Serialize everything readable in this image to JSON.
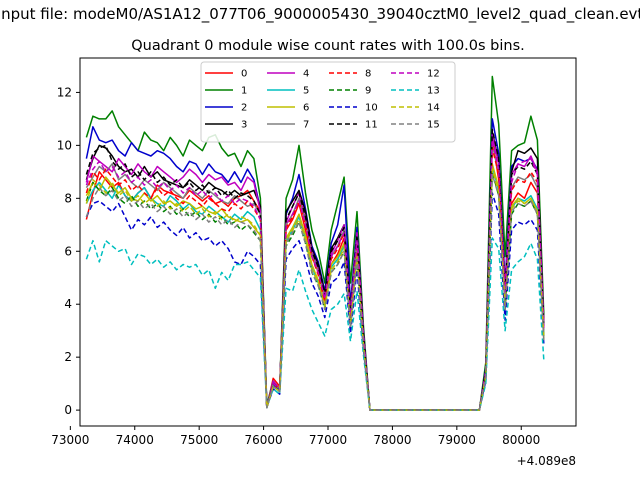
{
  "figure": {
    "suptitle": "Input file: modeM0/AS1A12_077T06_9000005430_39040cztM0_level2_quad_clean.evt"
  },
  "chart_data": {
    "type": "line",
    "title": "Quadrant 0 module wise count rates with 100.0s bins.",
    "xlabel": "",
    "ylabel": "",
    "x_offset_label": "+4.089e8",
    "xlim": [
      73150,
      80850
    ],
    "ylim": [
      -0.6,
      13.3
    ],
    "xticks": [
      73000,
      74000,
      75000,
      76000,
      77000,
      78000,
      79000,
      80000
    ],
    "yticks": [
      0,
      2,
      4,
      6,
      8,
      10,
      12
    ],
    "grid": false,
    "legend_position": "top-center",
    "legend_columns": 4,
    "series": [
      {
        "name": "0",
        "color": "#ff0000",
        "dash": "solid",
        "values": [
          7.2,
          8.2,
          9.0,
          8.7,
          8.4,
          8.6,
          8.1,
          7.9,
          8.2,
          8.4,
          8.0,
          8.5,
          8.3,
          8.2,
          8.1,
          8.0,
          8.3,
          8.1,
          7.9,
          8.1,
          7.8,
          7.9,
          7.7,
          8.0,
          8.1,
          8.3,
          7.9,
          7.5,
          0.1,
          1.2,
          0.9,
          6.8,
          7.2,
          7.8,
          6.8,
          5.8,
          5.2,
          4.3,
          5.5,
          5.9,
          6.5,
          3.5,
          6.5,
          2.8,
          0.0,
          0.0,
          0.0,
          0.0,
          0.0,
          0.0,
          0.0,
          0.0,
          0.0,
          0.0,
          0.0,
          0.0,
          0.0,
          0.0,
          0.0,
          0.0,
          0.0,
          0.0,
          1.5,
          10.3,
          8.7,
          4.5,
          7.8,
          8.2,
          8.0,
          8.6,
          8.2,
          3.4
        ]
      },
      {
        "name": "1",
        "color": "#008000",
        "dash": "solid",
        "values": [
          10.3,
          11.1,
          11.0,
          11.0,
          11.3,
          10.7,
          10.4,
          10.1,
          9.8,
          10.5,
          10.2,
          10.1,
          9.8,
          10.3,
          10.0,
          9.6,
          10.2,
          10.0,
          9.8,
          10.3,
          10.4,
          9.9,
          9.6,
          9.7,
          9.2,
          9.8,
          9.5,
          8.0,
          0.2,
          1.1,
          0.8,
          8.0,
          8.7,
          10.0,
          8.2,
          6.8,
          6.0,
          4.8,
          6.8,
          7.8,
          8.8,
          4.8,
          7.5,
          3.2,
          0.0,
          0.0,
          0.0,
          0.0,
          0.0,
          0.0,
          0.0,
          0.0,
          0.0,
          0.0,
          0.0,
          0.0,
          0.0,
          0.0,
          0.0,
          0.0,
          0.0,
          0.0,
          1.8,
          12.6,
          10.8,
          5.8,
          9.8,
          10.0,
          10.1,
          11.1,
          10.2,
          3.6
        ]
      },
      {
        "name": "2",
        "color": "#0000cc",
        "dash": "solid",
        "values": [
          9.5,
          10.7,
          10.2,
          10.1,
          10.2,
          9.8,
          9.6,
          10.1,
          9.8,
          9.7,
          9.6,
          9.8,
          9.7,
          9.5,
          9.2,
          9.0,
          9.4,
          9.3,
          8.9,
          9.3,
          9.0,
          8.9,
          8.6,
          9.0,
          8.6,
          9.1,
          8.7,
          7.6,
          0.1,
          1.0,
          0.7,
          7.4,
          8.0,
          8.9,
          7.6,
          6.2,
          5.6,
          4.5,
          6.3,
          7.0,
          8.5,
          4.0,
          6.9,
          3.0,
          0.0,
          0.0,
          0.0,
          0.0,
          0.0,
          0.0,
          0.0,
          0.0,
          0.0,
          0.0,
          0.0,
          0.0,
          0.0,
          0.0,
          0.0,
          0.0,
          0.0,
          0.0,
          1.6,
          11.0,
          9.7,
          4.8,
          9.2,
          9.5,
          9.4,
          9.5,
          9.1,
          3.2
        ]
      },
      {
        "name": "3",
        "color": "#000000",
        "dash": "solid",
        "values": [
          8.7,
          9.5,
          10.0,
          9.9,
          9.6,
          9.2,
          9.0,
          9.1,
          8.8,
          9.2,
          8.8,
          9.0,
          8.7,
          8.6,
          8.5,
          8.4,
          8.7,
          8.5,
          8.3,
          8.6,
          8.4,
          8.3,
          8.1,
          8.3,
          8.1,
          8.2,
          8.3,
          7.7,
          0.1,
          1.0,
          0.8,
          7.5,
          7.9,
          8.3,
          7.5,
          6.1,
          5.5,
          4.4,
          6.1,
          6.5,
          7.0,
          3.8,
          6.6,
          2.9,
          0.0,
          0.0,
          0.0,
          0.0,
          0.0,
          0.0,
          0.0,
          0.0,
          0.0,
          0.0,
          0.0,
          0.0,
          0.0,
          0.0,
          0.0,
          0.0,
          0.0,
          0.0,
          1.5,
          10.5,
          9.4,
          4.4,
          9.0,
          9.8,
          9.7,
          9.9,
          9.5,
          3.3
        ]
      },
      {
        "name": "4",
        "color": "#bf00bf",
        "dash": "solid",
        "values": [
          8.6,
          9.6,
          9.4,
          9.2,
          9.0,
          9.5,
          9.2,
          8.9,
          9.3,
          9.0,
          8.8,
          9.2,
          9.0,
          8.8,
          8.6,
          8.8,
          9.1,
          8.9,
          8.6,
          8.9,
          8.7,
          8.8,
          8.5,
          8.6,
          8.3,
          8.8,
          8.6,
          7.5,
          0.1,
          1.1,
          0.8,
          7.1,
          7.7,
          8.2,
          7.2,
          6.0,
          5.3,
          4.3,
          5.9,
          6.4,
          7.0,
          3.7,
          6.7,
          2.9,
          0.0,
          0.0,
          0.0,
          0.0,
          0.0,
          0.0,
          0.0,
          0.0,
          0.0,
          0.0,
          0.0,
          0.0,
          0.0,
          0.0,
          0.0,
          0.0,
          0.0,
          0.0,
          1.5,
          10.4,
          9.3,
          4.6,
          8.9,
          9.3,
          9.2,
          9.6,
          9.0,
          3.2
        ]
      },
      {
        "name": "5",
        "color": "#00bfbf",
        "dash": "solid",
        "values": [
          7.8,
          8.3,
          8.6,
          8.3,
          8.0,
          8.5,
          8.1,
          7.9,
          8.2,
          8.4,
          8.0,
          7.8,
          7.7,
          8.1,
          7.9,
          7.6,
          7.8,
          7.5,
          7.4,
          7.7,
          7.5,
          7.3,
          7.1,
          7.4,
          7.2,
          7.5,
          7.3,
          6.8,
          0.1,
          0.9,
          0.7,
          6.4,
          6.8,
          7.3,
          6.5,
          5.4,
          4.8,
          3.9,
          5.4,
          5.7,
          6.2,
          3.2,
          5.9,
          2.6,
          0.0,
          0.0,
          0.0,
          0.0,
          0.0,
          0.0,
          0.0,
          0.0,
          0.0,
          0.0,
          0.0,
          0.0,
          0.0,
          0.0,
          0.0,
          0.0,
          0.0,
          0.0,
          1.3,
          9.2,
          8.3,
          3.9,
          7.6,
          8.0,
          7.9,
          8.1,
          7.6,
          2.8
        ]
      },
      {
        "name": "6",
        "color": "#bfbf00",
        "dash": "solid",
        "values": [
          8.1,
          8.6,
          8.3,
          8.8,
          8.5,
          8.2,
          8.4,
          8.0,
          7.9,
          8.2,
          7.9,
          8.1,
          7.8,
          7.9,
          7.7,
          7.9,
          7.8,
          7.6,
          7.7,
          7.5,
          7.4,
          7.6,
          7.3,
          7.2,
          7.1,
          7.2,
          6.9,
          6.6,
          0.1,
          0.9,
          0.7,
          6.5,
          6.9,
          7.4,
          6.6,
          5.5,
          4.9,
          4.0,
          5.5,
          5.8,
          6.3,
          3.3,
          6.0,
          2.6,
          0.0,
          0.0,
          0.0,
          0.0,
          0.0,
          0.0,
          0.0,
          0.0,
          0.0,
          0.0,
          0.0,
          0.0,
          0.0,
          0.0,
          0.0,
          0.0,
          0.0,
          0.0,
          1.3,
          9.3,
          8.4,
          4.0,
          7.7,
          8.0,
          7.8,
          8.0,
          7.5,
          2.7
        ]
      },
      {
        "name": "7",
        "color": "#808080",
        "dash": "solid",
        "values": [
          8.4,
          8.8,
          9.2,
          9.0,
          9.3,
          8.7,
          8.9,
          8.6,
          8.4,
          8.7,
          8.5,
          8.3,
          8.6,
          8.4,
          8.2,
          8.0,
          8.4,
          8.2,
          8.0,
          8.3,
          8.1,
          7.9,
          7.8,
          8.1,
          7.9,
          7.7,
          7.8,
          7.4,
          0.1,
          1.0,
          0.8,
          7.0,
          7.4,
          8.0,
          7.1,
          5.9,
          5.2,
          4.2,
          5.8,
          6.2,
          6.8,
          3.6,
          6.4,
          2.8,
          0.0,
          0.0,
          0.0,
          0.0,
          0.0,
          0.0,
          0.0,
          0.0,
          0.0,
          0.0,
          0.0,
          0.0,
          0.0,
          0.0,
          0.0,
          0.0,
          0.0,
          0.0,
          1.4,
          10.0,
          9.0,
          4.3,
          8.4,
          8.8,
          8.7,
          8.9,
          8.4,
          3.0
        ]
      },
      {
        "name": "8",
        "color": "#ff0000",
        "dash": "dashed",
        "values": [
          8.2,
          9.0,
          8.7,
          9.1,
          8.8,
          8.5,
          8.7,
          8.3,
          8.5,
          8.2,
          8.0,
          8.4,
          8.1,
          8.3,
          8.0,
          7.8,
          8.1,
          7.9,
          7.7,
          8.0,
          7.8,
          7.6,
          7.5,
          7.8,
          7.6,
          7.9,
          7.6,
          7.2,
          0.1,
          1.0,
          0.8,
          6.9,
          7.3,
          7.9,
          7.0,
          5.8,
          5.1,
          4.1,
          5.7,
          6.1,
          6.7,
          3.5,
          6.3,
          2.7,
          0.0,
          0.0,
          0.0,
          0.0,
          0.0,
          0.0,
          0.0,
          0.0,
          0.0,
          0.0,
          0.0,
          0.0,
          0.0,
          0.0,
          0.0,
          0.0,
          0.0,
          0.0,
          1.4,
          9.9,
          8.9,
          4.2,
          8.3,
          8.7,
          8.6,
          9.0,
          8.6,
          3.0
        ]
      },
      {
        "name": "9",
        "color": "#008000",
        "dash": "dashed",
        "values": [
          7.9,
          8.6,
          8.3,
          8.1,
          8.4,
          8.0,
          7.8,
          8.1,
          7.7,
          7.9,
          7.6,
          7.8,
          7.5,
          7.7,
          7.4,
          7.6,
          7.3,
          7.5,
          7.2,
          7.4,
          7.1,
          7.3,
          7.0,
          7.1,
          6.8,
          7.0,
          6.7,
          6.4,
          0.1,
          0.9,
          0.7,
          6.2,
          6.6,
          7.1,
          6.3,
          5.2,
          4.7,
          3.8,
          5.2,
          5.5,
          6.0,
          3.1,
          5.7,
          2.5,
          0.0,
          0.0,
          0.0,
          0.0,
          0.0,
          0.0,
          0.0,
          0.0,
          0.0,
          0.0,
          0.0,
          0.0,
          0.0,
          0.0,
          0.0,
          0.0,
          0.0,
          0.0,
          1.2,
          9.0,
          8.1,
          3.8,
          7.4,
          7.8,
          7.7,
          7.9,
          7.4,
          2.7
        ]
      },
      {
        "name": "10",
        "color": "#0000cc",
        "dash": "dashed",
        "values": [
          7.3,
          7.8,
          7.9,
          7.7,
          7.5,
          7.8,
          7.3,
          6.8,
          7.2,
          7.0,
          7.3,
          6.9,
          7.1,
          6.8,
          6.6,
          6.9,
          6.5,
          6.7,
          6.4,
          6.5,
          6.2,
          6.4,
          6.1,
          5.6,
          5.5,
          6.0,
          5.8,
          5.5,
          0.1,
          0.8,
          0.6,
          5.7,
          6.1,
          6.4,
          5.7,
          4.8,
          4.3,
          3.5,
          4.8,
          5.0,
          5.6,
          2.9,
          5.3,
          2.3,
          0.0,
          0.0,
          0.0,
          0.0,
          0.0,
          0.0,
          0.0,
          0.0,
          0.0,
          0.0,
          0.0,
          0.0,
          0.0,
          0.0,
          0.0,
          0.0,
          0.0,
          0.0,
          1.1,
          8.2,
          7.4,
          3.4,
          6.8,
          7.1,
          7.0,
          7.2,
          6.8,
          2.5
        ]
      },
      {
        "name": "11",
        "color": "#000000",
        "dash": "dashed",
        "values": [
          8.9,
          9.7,
          9.9,
          10.0,
          9.4,
          9.1,
          9.3,
          8.8,
          9.0,
          8.7,
          9.0,
          8.6,
          8.8,
          8.5,
          8.7,
          8.4,
          8.6,
          8.3,
          8.5,
          8.2,
          8.4,
          8.1,
          8.3,
          8.0,
          8.2,
          8.1,
          7.9,
          7.4,
          0.1,
          1.0,
          0.8,
          7.2,
          7.7,
          8.2,
          7.3,
          6.0,
          5.4,
          4.3,
          6.0,
          6.4,
          6.9,
          3.7,
          6.6,
          2.9,
          0.0,
          0.0,
          0.0,
          0.0,
          0.0,
          0.0,
          0.0,
          0.0,
          0.0,
          0.0,
          0.0,
          0.0,
          0.0,
          0.0,
          0.0,
          0.0,
          0.0,
          0.0,
          1.5,
          10.6,
          9.5,
          4.5,
          8.9,
          9.2,
          9.1,
          9.4,
          8.9,
          3.1
        ]
      },
      {
        "name": "12",
        "color": "#bf00bf",
        "dash": "dashed",
        "values": [
          8.5,
          9.1,
          9.4,
          9.0,
          9.2,
          8.8,
          9.0,
          8.6,
          8.8,
          8.5,
          8.7,
          8.4,
          8.6,
          8.3,
          8.5,
          8.2,
          8.4,
          8.1,
          8.3,
          8.0,
          8.2,
          7.9,
          8.1,
          7.8,
          8.0,
          7.9,
          7.7,
          7.2,
          0.1,
          1.0,
          0.8,
          7.0,
          7.4,
          7.9,
          7.0,
          5.8,
          5.2,
          4.2,
          5.8,
          6.2,
          6.7,
          3.6,
          6.4,
          2.8,
          0.0,
          0.0,
          0.0,
          0.0,
          0.0,
          0.0,
          0.0,
          0.0,
          0.0,
          0.0,
          0.0,
          0.0,
          0.0,
          0.0,
          0.0,
          0.0,
          0.0,
          0.0,
          1.4,
          10.2,
          9.1,
          4.4,
          8.6,
          9.3,
          9.4,
          9.5,
          8.9,
          3.1
        ]
      },
      {
        "name": "13",
        "color": "#00bfbf",
        "dash": "dashed",
        "values": [
          5.7,
          6.4,
          5.6,
          6.4,
          6.2,
          6.0,
          6.1,
          5.5,
          5.9,
          5.8,
          5.5,
          5.7,
          5.4,
          5.6,
          5.3,
          5.5,
          5.4,
          5.5,
          5.1,
          5.3,
          4.6,
          5.2,
          4.9,
          5.5,
          5.5,
          5.6,
          5.3,
          5.0,
          0.1,
          0.8,
          0.6,
          4.6,
          4.5,
          5.3,
          4.5,
          3.8,
          3.3,
          2.8,
          3.8,
          4.0,
          4.4,
          2.6,
          4.5,
          2.1,
          0.0,
          0.0,
          0.0,
          0.0,
          0.0,
          0.0,
          0.0,
          0.0,
          0.0,
          0.0,
          0.0,
          0.0,
          0.0,
          0.0,
          0.0,
          0.0,
          0.0,
          0.0,
          1.0,
          6.5,
          6.1,
          3.0,
          5.3,
          5.6,
          5.8,
          6.3,
          5.7,
          1.9
        ]
      },
      {
        "name": "14",
        "color": "#bfbf00",
        "dash": "dashed",
        "values": [
          7.8,
          8.7,
          8.5,
          8.2,
          8.6,
          8.1,
          8.3,
          7.9,
          8.1,
          7.8,
          8.0,
          7.7,
          7.9,
          7.6,
          7.8,
          7.5,
          7.7,
          7.4,
          7.6,
          7.3,
          7.5,
          7.2,
          7.4,
          7.1,
          7.3,
          7.2,
          7.0,
          6.6,
          0.1,
          0.9,
          0.7,
          6.4,
          6.8,
          7.2,
          6.4,
          5.3,
          4.8,
          3.9,
          5.3,
          5.6,
          6.1,
          3.2,
          5.8,
          2.5,
          0.0,
          0.0,
          0.0,
          0.0,
          0.0,
          0.0,
          0.0,
          0.0,
          0.0,
          0.0,
          0.0,
          0.0,
          0.0,
          0.0,
          0.0,
          0.0,
          0.0,
          0.0,
          1.3,
          9.1,
          8.2,
          3.9,
          7.6,
          7.9,
          7.8,
          8.0,
          7.5,
          2.7
        ]
      },
      {
        "name": "15",
        "color": "#808080",
        "dash": "dashed",
        "values": [
          7.3,
          8.0,
          8.4,
          8.1,
          8.3,
          7.9,
          8.1,
          7.7,
          7.9,
          7.6,
          7.8,
          7.5,
          7.7,
          7.4,
          7.6,
          7.3,
          7.5,
          7.2,
          7.4,
          7.1,
          7.3,
          7.0,
          7.2,
          6.9,
          7.1,
          7.0,
          6.8,
          6.4,
          0.1,
          0.9,
          0.7,
          6.3,
          6.7,
          7.1,
          6.3,
          5.2,
          4.7,
          3.8,
          5.2,
          5.5,
          6.0,
          3.1,
          5.7,
          2.4,
          0.0,
          0.0,
          0.0,
          0.0,
          0.0,
          0.0,
          0.0,
          0.0,
          0.0,
          0.0,
          0.0,
          0.0,
          0.0,
          0.0,
          0.0,
          0.0,
          0.0,
          0.0,
          1.2,
          8.9,
          8.1,
          3.8,
          7.5,
          7.8,
          7.7,
          7.9,
          7.4,
          2.6
        ]
      }
    ]
  }
}
